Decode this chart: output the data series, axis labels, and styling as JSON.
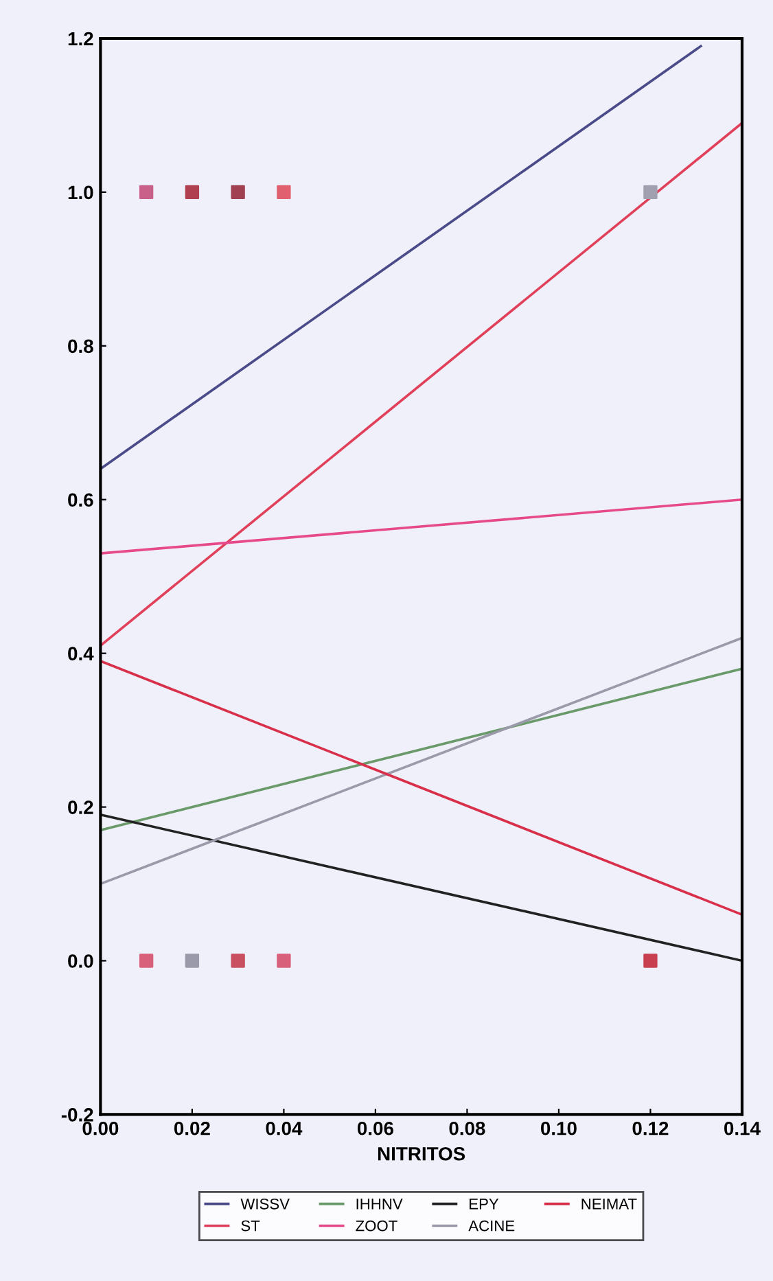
{
  "chart_data": {
    "type": "line",
    "xlabel": "NITRITOS",
    "xlim": [
      0,
      0.14
    ],
    "xticks": [
      {
        "value": 0,
        "label": "0.00"
      },
      {
        "value": 0.02,
        "label": "0.02"
      },
      {
        "value": 0.04,
        "label": "0.04"
      },
      {
        "value": 0.06,
        "label": "0.06"
      },
      {
        "value": 0.08,
        "label": "0.08"
      },
      {
        "value": 0.1,
        "label": "0.10"
      },
      {
        "value": 0.12,
        "label": "0.12"
      },
      {
        "value": 0.14,
        "label": "0.14"
      }
    ],
    "ylim": [
      -0.2,
      1.2
    ],
    "yticks": [
      {
        "value": -0.2,
        "label": "-0.2"
      },
      {
        "value": 0,
        "label": "0.0"
      },
      {
        "value": 0.2,
        "label": "0.2"
      },
      {
        "value": 0.4,
        "label": "0.4"
      },
      {
        "value": 0.6,
        "label": "0.6"
      },
      {
        "value": 0.8,
        "label": "0.8"
      },
      {
        "value": 1.0,
        "label": "1.0"
      },
      {
        "value": 1.2,
        "label": "1.2"
      }
    ],
    "legend": "bottom",
    "series": [
      {
        "name": "WISSV",
        "color": "#4b4b8a",
        "x": [
          0,
          0.131
        ],
        "values": [
          0.64,
          1.19
        ]
      },
      {
        "name": "ST",
        "color": "#e0405a",
        "x": [
          0,
          0.14
        ],
        "values": [
          0.41,
          1.09
        ]
      },
      {
        "name": "IHHNV",
        "color": "#6a9a6a",
        "x": [
          0,
          0.14
        ],
        "values": [
          0.17,
          0.38
        ]
      },
      {
        "name": "ZOOT",
        "color": "#e64a8a",
        "x": [
          0,
          0.14
        ],
        "values": [
          0.53,
          0.6
        ]
      },
      {
        "name": "EPY",
        "color": "#222222",
        "x": [
          0,
          0.14
        ],
        "values": [
          0.19,
          0.0
        ]
      },
      {
        "name": "ACINE",
        "color": "#9a9aaa",
        "x": [
          0,
          0.14
        ],
        "values": [
          0.1,
          0.42
        ]
      },
      {
        "name": "NEIMAT",
        "color": "#d8304a",
        "x": [
          0,
          0.14
        ],
        "values": [
          0.39,
          0.06
        ]
      },
      {
        "type": "scatter",
        "marker": "square",
        "x": [
          0.01,
          0.02,
          0.03,
          0.04,
          0.12,
          0.01,
          0.02,
          0.03,
          0.04,
          0.12
        ],
        "values": [
          0,
          0,
          0,
          0,
          0,
          1,
          1,
          1,
          1,
          1
        ],
        "colors": [
          "#d9607a",
          "#9a9aaa",
          "#c85060",
          "#d9607a",
          "#c84050",
          "#c8608a",
          "#b04050",
          "#a04050",
          "#e06070",
          "#a0a0b0"
        ]
      }
    ]
  }
}
